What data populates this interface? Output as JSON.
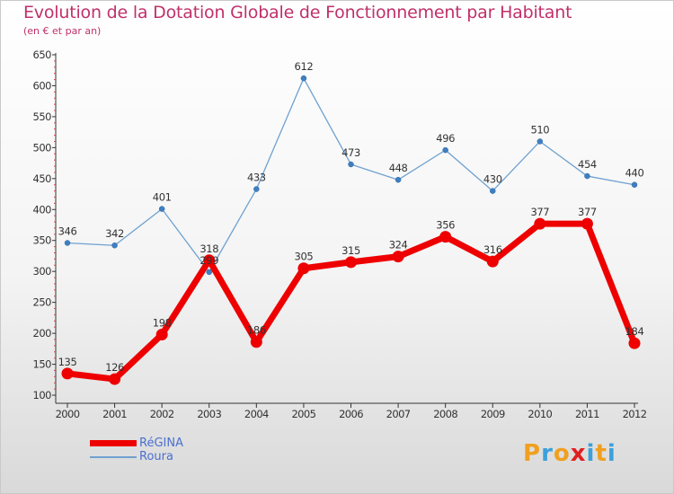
{
  "header": {
    "title": "Evolution de la Dotation Globale de Fonctionnement par Habitant",
    "subtitle": "(en € et par an)"
  },
  "legend": [
    {
      "name": "RéGINA",
      "color": "#ee0000"
    },
    {
      "name": "Roura",
      "color": "#6fa1d0"
    }
  ],
  "brand": {
    "letters": [
      "P",
      "r",
      "o",
      "x",
      "i",
      "t",
      "i"
    ],
    "colors": [
      "#f0a020",
      "#3ca0dc",
      "#f0a020",
      "#e02020",
      "#3ca0dc",
      "#f0a020",
      "#3ca0dc"
    ]
  },
  "chart_data": {
    "type": "line",
    "categories": [
      "2000",
      "2001",
      "2002",
      "2003",
      "2004",
      "2005",
      "2006",
      "2007",
      "2008",
      "2009",
      "2010",
      "2011",
      "2012"
    ],
    "series": [
      {
        "name": "RéGINA",
        "color": "#ee0000",
        "values": [
          135,
          126,
          198,
          318,
          186,
          305,
          315,
          324,
          356,
          316,
          377,
          377,
          184
        ],
        "labels": [
          "135",
          "126",
          "198",
          "318",
          "186",
          "305",
          "315",
          "324",
          "356",
          "316",
          "377",
          "377",
          "184"
        ]
      },
      {
        "name": "Roura",
        "color": "#6fa1d0",
        "values": [
          346,
          342,
          401,
          299,
          433,
          612,
          473,
          448,
          496,
          430,
          510,
          454,
          440
        ],
        "labels": [
          "346",
          "342",
          "401",
          "299",
          "433",
          "612",
          "473",
          "448",
          "496",
          "430",
          "510",
          "454",
          "440"
        ]
      }
    ],
    "yticks": [
      100,
      150,
      200,
      250,
      300,
      350,
      400,
      450,
      500,
      550,
      600,
      650
    ],
    "ylim": [
      100,
      650
    ],
    "xlabel": "",
    "ylabel": "",
    "grid": false,
    "legend_position": "bottom-left"
  }
}
